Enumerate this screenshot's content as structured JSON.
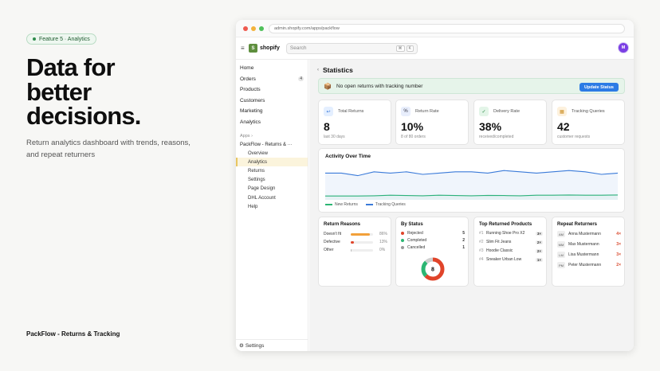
{
  "intro": {
    "pill": "Feature 5 · Analytics",
    "headline": [
      "Data for",
      "better",
      "decisions."
    ],
    "subtitle": "Return analytics dashboard with trends, reasons, and repeat returners",
    "brand": "PackFlow - Returns & Tracking"
  },
  "browser": {
    "url": "admin.shopify.com/apps/packflow"
  },
  "topbar": {
    "logo_letter": "S",
    "logo_text": "shopify",
    "search_placeholder": "Search",
    "kbd1": "⌘",
    "kbd2": "K",
    "avatar": "M"
  },
  "sidebar": {
    "items": [
      {
        "label": "Home"
      },
      {
        "label": "Orders",
        "badge": "4"
      },
      {
        "label": "Products"
      },
      {
        "label": "Customers"
      },
      {
        "label": "Marketing"
      },
      {
        "label": "Analytics"
      }
    ],
    "apps_header": "Apps ›",
    "app_name": "PackFlow - Returns & ···",
    "sub_items": [
      "Overview",
      "Analytics",
      "Returns",
      "Settings",
      "Page Design",
      "DHL Account",
      "Help"
    ],
    "footer": "Settings",
    "footer_icon": "⚙"
  },
  "main": {
    "title": "Statistics",
    "title_arrow": "‹",
    "banner": {
      "icon": "📦",
      "text": "No open returns with tracking number",
      "button": "Update Status"
    },
    "kpis": [
      {
        "label": "Total Returns",
        "value": "8",
        "caption": "last 30 days",
        "icon": "↩",
        "color": "#e4efff",
        "ink": "#2c6fd6"
      },
      {
        "label": "Return Rate",
        "value": "10%",
        "caption": "8 of 80 orders",
        "icon": "%",
        "color": "#e8eefc",
        "ink": "#334"
      },
      {
        "label": "Delivery Rate",
        "value": "38%",
        "caption": "received/completed",
        "icon": "✓",
        "color": "#e3f5e8",
        "ink": "#2a8a45"
      },
      {
        "label": "Tracking Queries",
        "value": "42",
        "caption": "customer requests",
        "icon": "▦",
        "color": "#fdf1dd",
        "ink": "#c98a1a"
      }
    ],
    "activity": {
      "title": "Activity Over Time",
      "legend": [
        "New Returns",
        "Tracking Queries"
      ]
    },
    "reasons": {
      "title": "Return Reasons",
      "rows": [
        {
          "label": "Doesn't fit",
          "pct": "86%",
          "fill": 0.86,
          "color": "#f2a03a"
        },
        {
          "label": "Defective",
          "pct": "13%",
          "fill": 0.13,
          "color": "#e0442a"
        },
        {
          "label": "Other",
          "pct": "0%",
          "fill": 0.03,
          "color": "#bbb"
        }
      ]
    },
    "status": {
      "title": "By Status",
      "rows": [
        {
          "label": "Rejected",
          "count": "5",
          "color": "#e0442a"
        },
        {
          "label": "Completed",
          "count": "2",
          "color": "#2bb673"
        },
        {
          "label": "Cancelled",
          "count": "1",
          "color": "#999999"
        }
      ],
      "donut_center": "8"
    },
    "products": {
      "title": "Top Returned Products",
      "rows": [
        {
          "rank": "#1",
          "name": "Running Shoe Pro X2",
          "qty": "3×"
        },
        {
          "rank": "#2",
          "name": "Slim Fit Jeans",
          "qty": "2×"
        },
        {
          "rank": "#3",
          "name": "Hoodie Classic",
          "qty": "2×"
        },
        {
          "rank": "#4",
          "name": "Sneaker Urban Low",
          "qty": "1×"
        }
      ]
    },
    "returners": {
      "title": "Repeat Returners",
      "rows": [
        {
          "initials": "AM",
          "name": "Anna Mustermann",
          "count": "4×"
        },
        {
          "initials": "MM",
          "name": "Max Mustermann",
          "count": "3×"
        },
        {
          "initials": "LM",
          "name": "Lisa Mustermann",
          "count": "3×"
        },
        {
          "initials": "PM",
          "name": "Peter Mustermann",
          "count": "2×"
        }
      ]
    }
  },
  "chart_data": {
    "type": "area",
    "title": "Activity Over Time",
    "series": [
      {
        "name": "New Returns",
        "color": "#2bb673",
        "values": [
          3,
          3,
          3,
          3.2,
          3.6,
          3.4,
          3.2,
          3.6,
          3.4,
          3.2,
          3.5,
          3.4,
          3.2,
          3.6,
          3.6,
          3.8,
          3.6,
          3.6,
          3.8
        ]
      },
      {
        "name": "Tracking Queries",
        "color": "#3a7ad9",
        "values": [
          21,
          21,
          19,
          22,
          21,
          22,
          20,
          21,
          22,
          22,
          21,
          23,
          22,
          21,
          22,
          23,
          22,
          20,
          21
        ]
      }
    ],
    "ylim": [
      0,
      30
    ]
  }
}
